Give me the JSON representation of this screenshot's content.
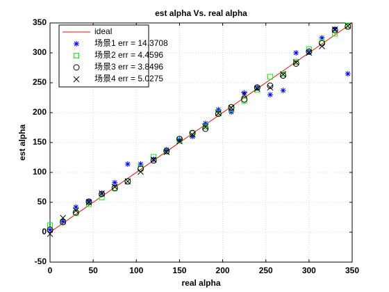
{
  "chart_data": {
    "type": "scatter",
    "title": "est alpha Vs. real alpha",
    "xlabel": "real alpha",
    "ylabel": "est alpha",
    "xlim": [
      0,
      350
    ],
    "ylim": [
      -50,
      350
    ],
    "xticks": [
      0,
      50,
      100,
      150,
      200,
      250,
      300,
      350
    ],
    "yticks": [
      -50,
      0,
      50,
      100,
      150,
      200,
      250,
      300,
      350
    ],
    "grid": true,
    "legend": "northwest",
    "x": [
      0,
      15,
      30,
      45,
      60,
      75,
      90,
      105,
      120,
      135,
      150,
      165,
      180,
      195,
      210,
      225,
      240,
      255,
      270,
      285,
      300,
      315,
      330,
      345
    ],
    "series": [
      {
        "name": "ideal",
        "color": "#ff0000",
        "marker": "line",
        "x": [
          0,
          350
        ],
        "values": [
          0,
          350
        ]
      },
      {
        "name": "场景1 err = 14.3708",
        "color": "#0000ff",
        "marker": "star",
        "values": [
          4,
          18,
          42,
          52,
          65,
          83,
          114,
          114,
          122,
          138,
          155,
          160,
          182,
          205,
          201,
          233,
          242,
          230,
          237,
          300,
          302,
          325,
          340,
          265
        ]
      },
      {
        "name": "场景2 err = 4.4596",
        "color": "#00ff00",
        "marker": "square",
        "values": [
          12,
          17,
          32,
          47,
          58,
          73,
          85,
          108,
          126,
          135,
          153,
          165,
          177,
          200,
          206,
          220,
          238,
          260,
          265,
          285,
          306,
          318,
          332,
          346
        ]
      },
      {
        "name": "场景3 err = 3.8496",
        "color": "#000000",
        "marker": "circle",
        "values": [
          4,
          17,
          33,
          51,
          64,
          74,
          85,
          106,
          120,
          136,
          156,
          166,
          173,
          198,
          209,
          222,
          242,
          245,
          262,
          282,
          302,
          316,
          338,
          344
        ]
      },
      {
        "name": "场景4 err = 5.0275",
        "color": "#000000",
        "marker": "cross",
        "values": [
          -3,
          24,
          36,
          50,
          65,
          76,
          85,
          101,
          121,
          134,
          152,
          163,
          176,
          199,
          208,
          230,
          240,
          242,
          264,
          284,
          300,
          311,
          339,
          345
        ]
      }
    ]
  }
}
